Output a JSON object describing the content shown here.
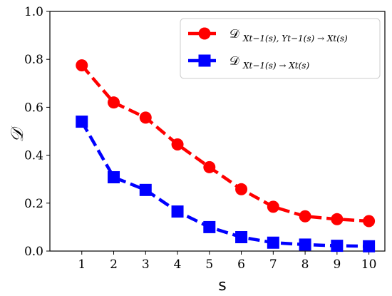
{
  "chart_data": {
    "type": "line",
    "x": [
      1,
      2,
      3,
      4,
      5,
      6,
      7,
      8,
      9,
      10
    ],
    "xlabel": "s",
    "ylabel": "𝒟",
    "xlim": [
      0,
      10.5
    ],
    "ylim": [
      0.0,
      1.0
    ],
    "xticks": [
      "1",
      "2",
      "3",
      "4",
      "5",
      "6",
      "7",
      "8",
      "9",
      "10"
    ],
    "yticks": [
      "0.0",
      "0.2",
      "0.4",
      "0.6",
      "0.8",
      "1.0"
    ],
    "grid": false,
    "legend_position": "top-right",
    "series": [
      {
        "name_main": "𝒟",
        "name_sub": "X_{t−1}(s), Y_{t−1}(s) → X_t(s)",
        "legend_sub_display": "Xt−1(s), Yt−1(s) → Xt(s)",
        "color": "#ff0000",
        "marker": "circle",
        "linestyle": "dashed",
        "values": [
          0.775,
          0.62,
          0.557,
          0.445,
          0.35,
          0.258,
          0.185,
          0.145,
          0.133,
          0.125
        ]
      },
      {
        "name_main": "𝒟",
        "name_sub": "X_{t−1}(s) → X_t(s)",
        "legend_sub_display": "Xt−1(s) → Xt(s)",
        "color": "#0000ff",
        "marker": "square",
        "linestyle": "dashed",
        "values": [
          0.54,
          0.308,
          0.255,
          0.165,
          0.1,
          0.058,
          0.035,
          0.027,
          0.022,
          0.02
        ]
      }
    ]
  }
}
